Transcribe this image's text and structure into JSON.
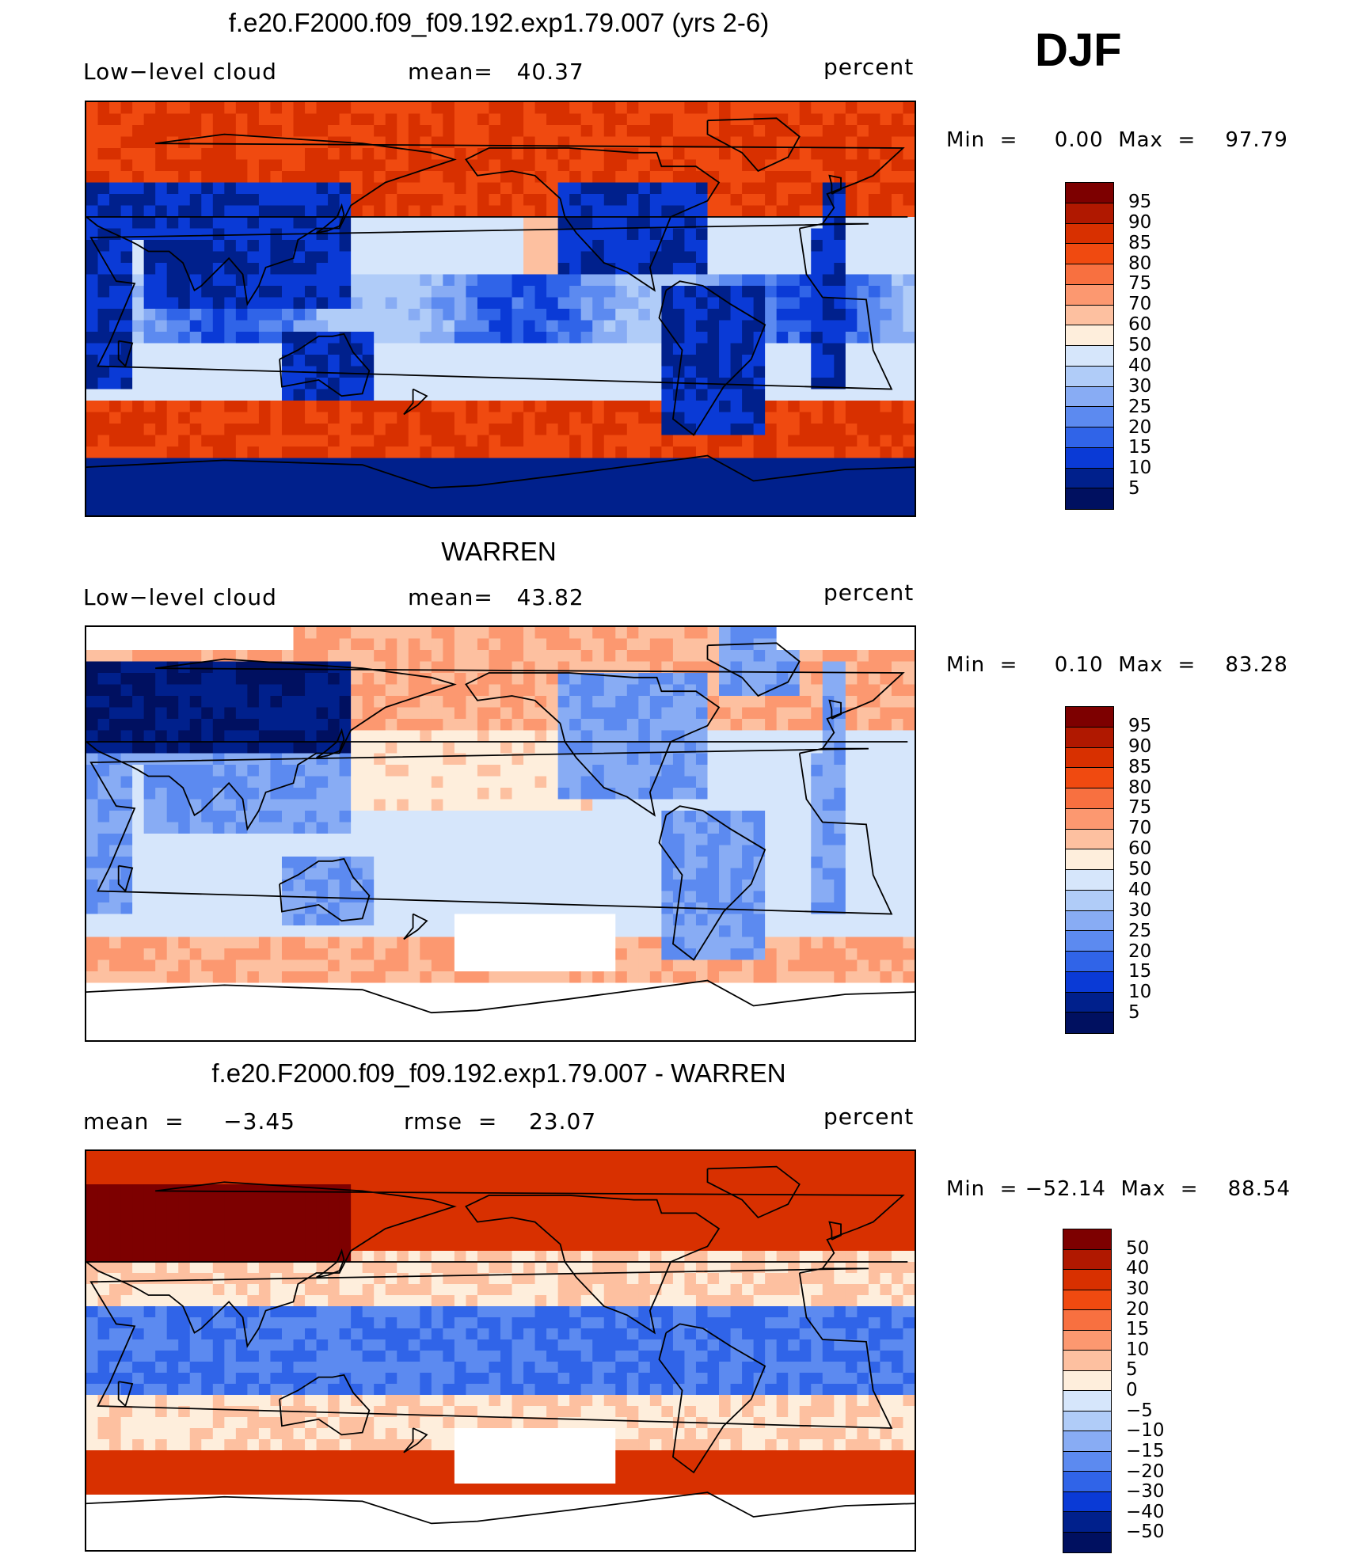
{
  "season": "DJF",
  "panels": [
    {
      "id": "model",
      "title": "f.e20.F2000.f09_f09.192.exp1.79.007 (yrs 2-6)",
      "left_label": "Low−level cloud",
      "mid_label": "mean=   40.37",
      "units": "percent",
      "minmax": "Min  =     0.00  Max  =    97.79",
      "colorbar_labels": [
        "95",
        "90",
        "85",
        "80",
        "75",
        "70",
        "60",
        "50",
        "40",
        "30",
        "25",
        "20",
        "15",
        "10",
        "5"
      ],
      "colorbar_colors": [
        "#7d0000",
        "#b01800",
        "#d83000",
        "#f04a10",
        "#f87040",
        "#fc9870",
        "#fdc0a0",
        "#feeedc",
        "#d6e6fb",
        "#b0ccf8",
        "#88acf4",
        "#5c8af0",
        "#3064e8",
        "#0a3ad6",
        "#00208c",
        "#001060"
      ],
      "field": "model"
    },
    {
      "id": "obs",
      "title": "WARREN",
      "left_label": "Low−level cloud",
      "mid_label": "mean=   43.82",
      "units": "percent",
      "minmax": "Min  =     0.10  Max  =    83.28",
      "colorbar_labels": [
        "95",
        "90",
        "85",
        "80",
        "75",
        "70",
        "60",
        "50",
        "40",
        "30",
        "25",
        "20",
        "15",
        "10",
        "5"
      ],
      "colorbar_colors": [
        "#7d0000",
        "#b01800",
        "#d83000",
        "#f04a10",
        "#f87040",
        "#fc9870",
        "#fdc0a0",
        "#feeedc",
        "#d6e6fb",
        "#b0ccf8",
        "#88acf4",
        "#5c8af0",
        "#3064e8",
        "#0a3ad6",
        "#00208c",
        "#001060"
      ],
      "field": "obs"
    },
    {
      "id": "diff",
      "title": "f.e20.F2000.f09_f09.192.exp1.79.007 - WARREN",
      "left_label": "mean  =     −3.45",
      "mid_label": "rmse  =    23.07",
      "units": "percent",
      "minmax": "Min  = −52.14  Max  =    88.54",
      "colorbar_labels": [
        "50",
        "40",
        "30",
        "20",
        "15",
        "10",
        "5",
        "0",
        "−5",
        "−10",
        "−15",
        "−20",
        "−30",
        "−40",
        "−50"
      ],
      "colorbar_colors": [
        "#7d0000",
        "#b01800",
        "#d83000",
        "#f04a10",
        "#f87040",
        "#fc9870",
        "#fdc0a0",
        "#feeedc",
        "#d6e6fb",
        "#b0ccf8",
        "#88acf4",
        "#5c8af0",
        "#3064e8",
        "#0a3ad6",
        "#00208c",
        "#001060"
      ],
      "field": "diff"
    }
  ]
}
